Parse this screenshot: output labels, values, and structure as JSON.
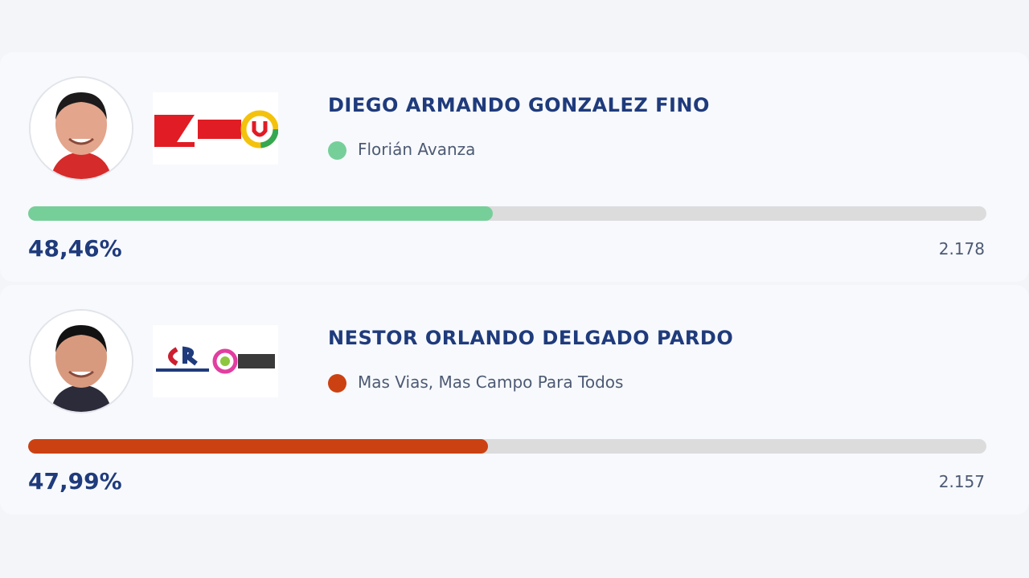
{
  "candidates": [
    {
      "name": "DIEGO ARMANDO GONZALEZ FINO",
      "party": "Florián Avanza",
      "color": "#76cf99",
      "percent": {
        "value": 48.46,
        "label": "48,46%"
      },
      "votes": {
        "value": 2178,
        "label": "2.178"
      }
    },
    {
      "name": "NESTOR ORLANDO DELGADO PARDO",
      "party": "Mas Vias, Mas Campo Para Todos",
      "color": "#cc4112",
      "percent": {
        "value": 47.99,
        "label": "47,99%"
      },
      "votes": {
        "value": 2157,
        "label": "2.157"
      }
    }
  ]
}
